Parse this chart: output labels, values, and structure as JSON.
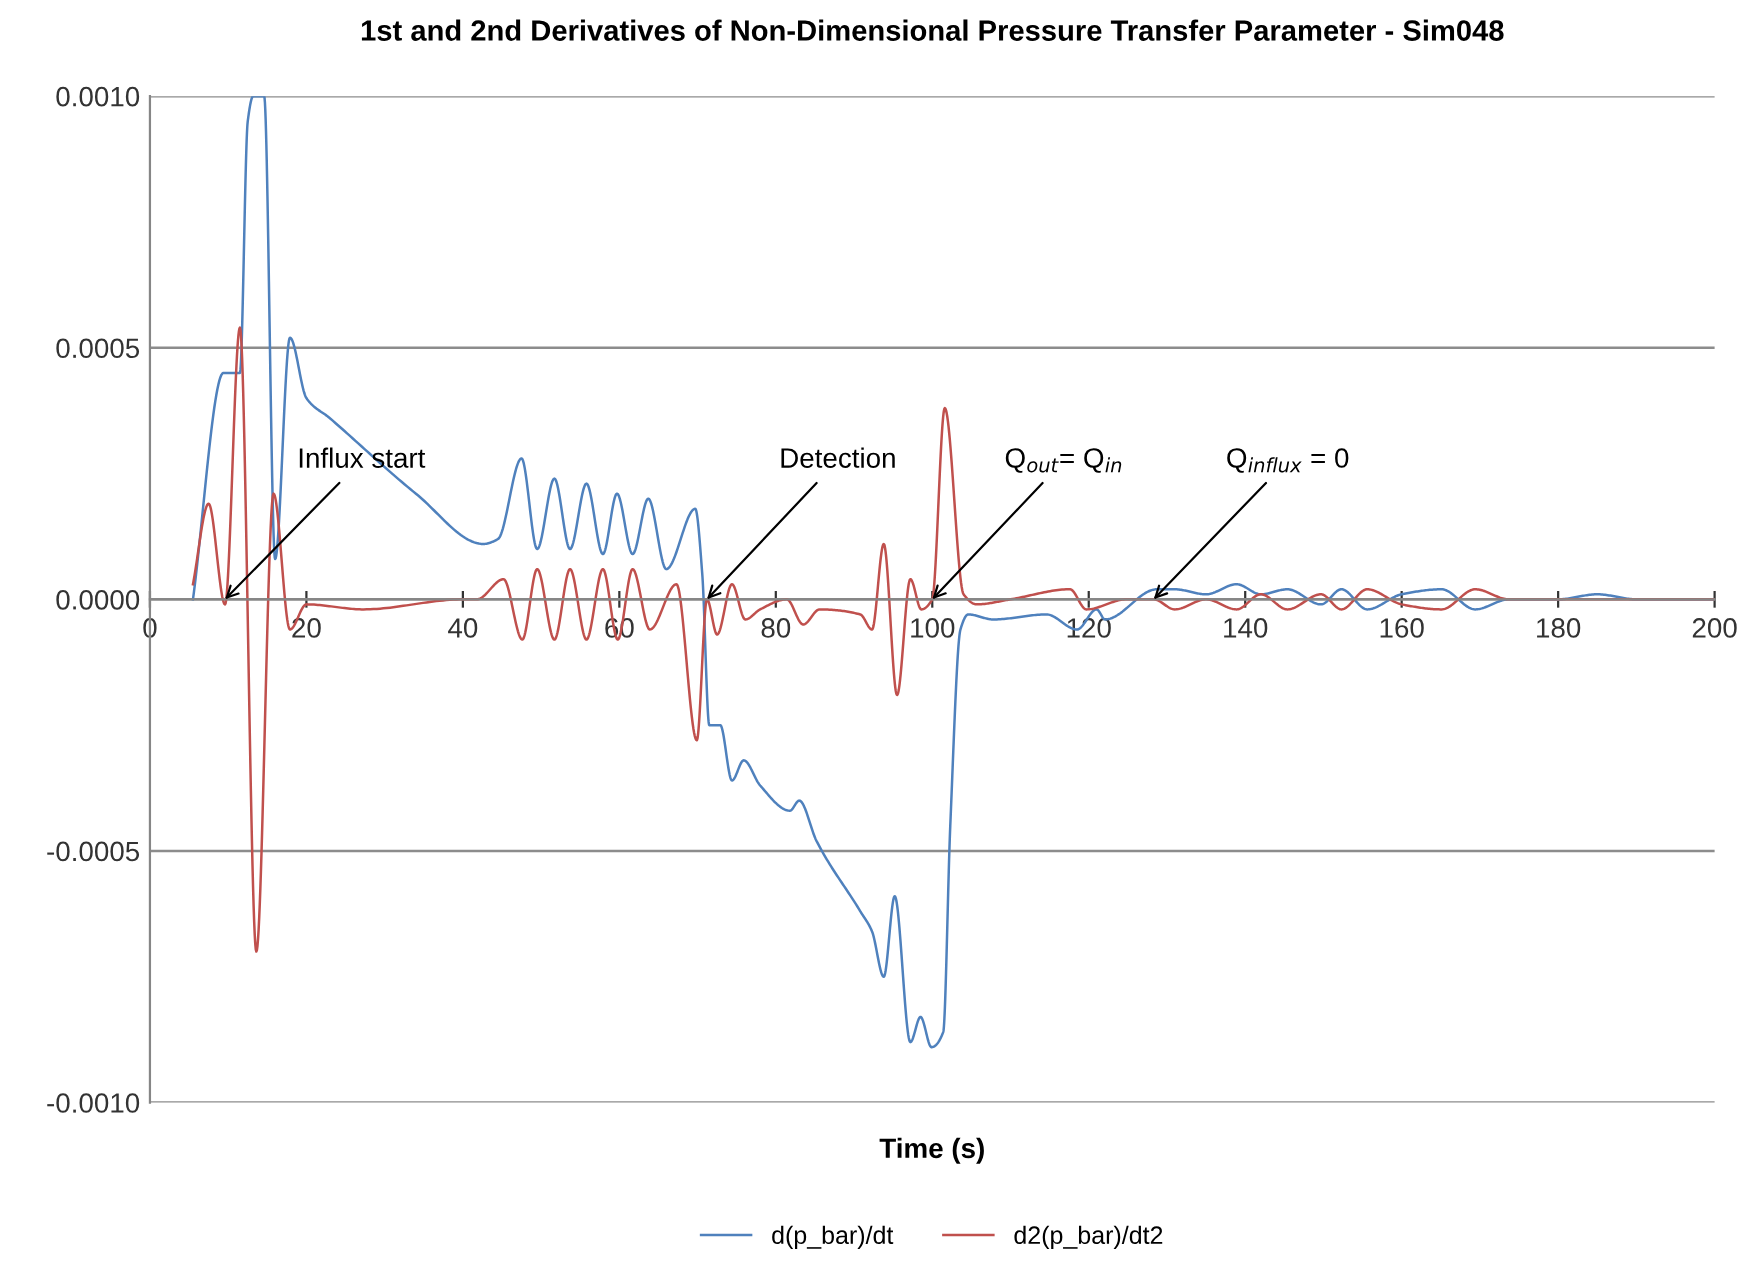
{
  "chart_data": {
    "type": "line",
    "title": "1st and 2nd Derivatives of Non-Dimensional Pressure Transfer Parameter - Sim048",
    "xlabel": "Time (s)",
    "xlim": [
      0,
      200
    ],
    "xticks": [
      0,
      20,
      40,
      60,
      80,
      100,
      120,
      140,
      160,
      180,
      200
    ],
    "ylim": [
      -0.001,
      0.001
    ],
    "yticks": [
      {
        "value": 0.001,
        "label": "0.0010"
      },
      {
        "value": 0.0005,
        "label": "0.0005"
      },
      {
        "value": 0,
        "label": "0.0000"
      },
      {
        "value": -0.0005,
        "label": "-0.0005"
      },
      {
        "value": -0.001,
        "label": "-0.0010"
      }
    ],
    "grid": "y",
    "legend": "bottom",
    "marker": "none",
    "line_style": "solid",
    "series": [
      {
        "name": "d(p_bar)/dt",
        "color": "#4f81bd",
        "x": [
          5.5,
          9.4,
          11.5,
          12.5,
          13.2,
          14.6,
          16.0,
          17.9,
          20,
          23,
          34,
          42.6,
          44.5,
          47.5,
          49.5,
          51.7,
          53.7,
          55.8,
          57.9,
          59.7,
          61.7,
          63.7,
          66,
          69.7,
          70.6,
          71.5,
          72.9,
          74.4,
          75.9,
          78,
          81.8,
          83,
          85.2,
          90.8,
          92.3,
          93.8,
          95.2,
          97.2,
          98.5,
          99.9,
          101.4,
          102.3,
          103.6,
          104.6,
          107.8,
          114.6,
          118.5,
          121,
          122.1,
          128.7,
          131,
          135,
          138.9,
          142,
          145.4,
          149.7,
          152.3,
          155.6,
          160,
          165.1,
          169.4,
          173.7,
          180,
          185,
          190,
          200
        ],
        "values": [
          0,
          0.00045,
          0.00045,
          0.00095,
          0.001,
          0.001,
          8e-05,
          0.00052,
          0.0004,
          0.00036,
          0.00021,
          0.00011,
          0.00012,
          0.00028,
          0.0001,
          0.00024,
          0.0001,
          0.00023,
          9e-05,
          0.00021,
          9e-05,
          0.0002,
          6e-05,
          0.00018,
          5e-05,
          -0.00025,
          -0.00025,
          -0.00036,
          -0.00032,
          -0.00037,
          -0.00042,
          -0.0004,
          -0.00048,
          -0.00062,
          -0.00066,
          -0.00075,
          -0.00059,
          -0.00088,
          -0.00083,
          -0.00089,
          -0.00086,
          -0.00045,
          -6e-05,
          -3e-05,
          -4e-05,
          -3e-05,
          -6e-05,
          -2e-05,
          -4e-05,
          2e-05,
          2e-05,
          1e-05,
          3e-05,
          1e-05,
          2e-05,
          -1e-05,
          2e-05,
          -2e-05,
          1e-05,
          2e-05,
          -2e-05,
          0,
          0,
          1e-05,
          0,
          0
        ]
      },
      {
        "name": "d2(p_bar)/dt2",
        "color": "#c0504d",
        "x": [
          5.5,
          7.5,
          9.6,
          11.5,
          13.6,
          15.8,
          17.9,
          20,
          27.3,
          40,
          41.8,
          45.2,
          47.6,
          49.5,
          51.7,
          53.7,
          55.8,
          57.9,
          59.8,
          61.7,
          63.9,
          67.3,
          69.9,
          71.2,
          72.5,
          74.4,
          76.1,
          78,
          81.4,
          83.5,
          85.6,
          90.8,
          92.3,
          93.8,
          95.5,
          97.2,
          98.6,
          100,
          101.6,
          104,
          105.7,
          110,
          117.6,
          119.7,
          124.8,
          128.3,
          131,
          135,
          138.9,
          142,
          145.4,
          149.7,
          152.3,
          155.6,
          160,
          165.1,
          169.4,
          173.7,
          180,
          200
        ],
        "values": [
          3e-05,
          0.00019,
          -1e-05,
          0.00054,
          -0.0007,
          0.00021,
          -6e-05,
          -1e-05,
          -2e-05,
          0,
          0,
          4e-05,
          -8e-05,
          6e-05,
          -8e-05,
          6e-05,
          -8e-05,
          6e-05,
          -8e-05,
          6e-05,
          -6e-05,
          3e-05,
          -0.00028,
          0,
          -7e-05,
          3e-05,
          -4e-05,
          -2e-05,
          0,
          -5e-05,
          -2e-05,
          -3e-05,
          -6e-05,
          0.00011,
          -0.00019,
          4e-05,
          -2e-05,
          0,
          0.00038,
          1e-05,
          -1e-05,
          0,
          2e-05,
          -2e-05,
          0,
          0,
          -2e-05,
          0,
          -2e-05,
          1e-05,
          -2e-05,
          1e-05,
          -2e-05,
          2e-05,
          -1e-05,
          -2e-05,
          2e-05,
          0,
          0,
          0
        ]
      }
    ],
    "annotations": [
      {
        "text": "Influx start",
        "x": 9.6,
        "y": 0
      },
      {
        "text": "Detection",
        "x": 71.2,
        "y": 0
      },
      {
        "text": "Q$_{out}$= Q$_{in}$",
        "x": 100,
        "y": 0
      },
      {
        "text": "Q$_{influx}$ = 0",
        "x": 128.3,
        "y": 0
      }
    ]
  }
}
